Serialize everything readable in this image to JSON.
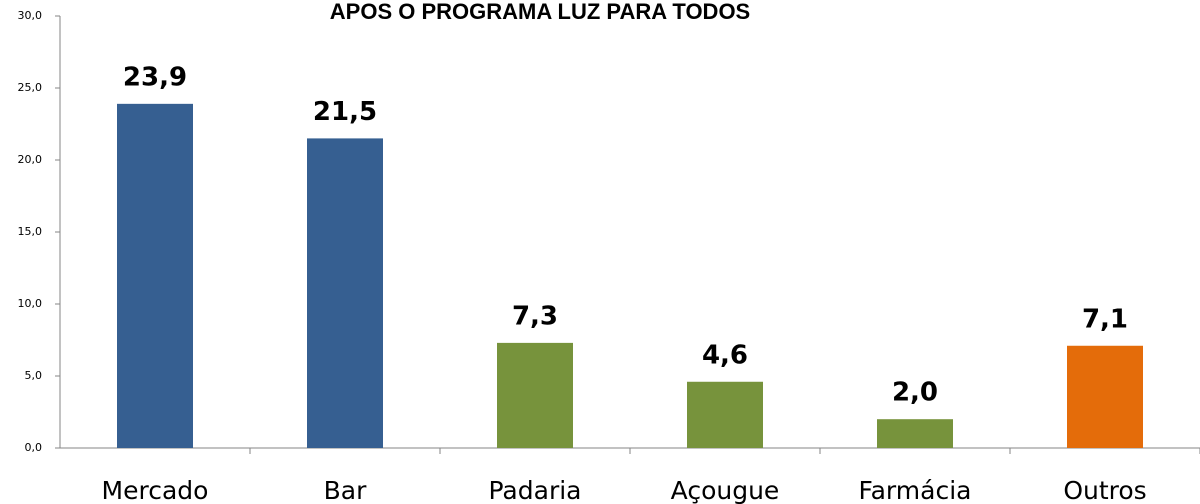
{
  "chart_data": {
    "type": "bar",
    "title": "APOS O PROGRAMA LUZ PARA TODOS",
    "categories": [
      "Mercado",
      "Bar",
      "Padaria",
      "Açougue",
      "Farmácia",
      "Outros"
    ],
    "values": [
      23.9,
      21.5,
      7.3,
      4.6,
      2.0,
      7.1
    ],
    "value_labels": [
      "23,9",
      "21,5",
      "7,3",
      "4,6",
      "2,0",
      "7,1"
    ],
    "colors": [
      "#365f91",
      "#365f91",
      "#77933c",
      "#77933c",
      "#77933c",
      "#e46c0a"
    ],
    "ylim": [
      0,
      30
    ],
    "yticks": [
      {
        "value": 0,
        "label": "0,0"
      },
      {
        "value": 5,
        "label": "5,0"
      },
      {
        "value": 10,
        "label": "10,0"
      },
      {
        "value": 15,
        "label": "15,0"
      },
      {
        "value": 20,
        "label": "20,0"
      },
      {
        "value": 25,
        "label": "25,0"
      },
      {
        "value": 30,
        "label": "30,0"
      }
    ],
    "grid": false
  }
}
